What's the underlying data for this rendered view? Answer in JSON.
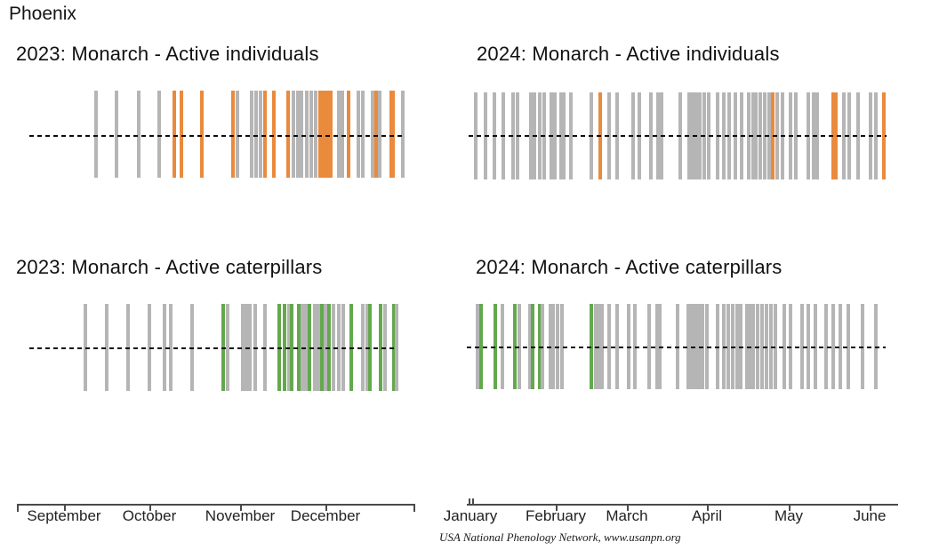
{
  "heading": "Phoenix",
  "attribution": "USA National Phenology Network, www.usanpn.org",
  "chart_data": {
    "type": "bar",
    "title": "Phoenix",
    "legend_colors": {
      "g": "#b5b5b5",
      "o": "#ea8a3c",
      "n": "#64a84e"
    },
    "x_axes": [
      {
        "id": "fall",
        "labels": [
          "September",
          "October",
          "November",
          "December"
        ]
      },
      {
        "id": "spring",
        "labels": [
          "January",
          "February",
          "March",
          "April",
          "May",
          "June"
        ]
      }
    ],
    "panels": [
      {
        "title": "2023: Monarch - Active individuals",
        "axis": "fall",
        "highlight": "orange",
        "bars": [
          [
            17.3,
            "g"
          ],
          [
            22.7,
            "g"
          ],
          [
            28.7,
            "g"
          ],
          [
            34.1,
            "g"
          ],
          [
            38.2,
            "o"
          ],
          [
            40.0,
            "o"
          ],
          [
            45.5,
            "o"
          ],
          [
            53.8,
            "o"
          ],
          [
            55.0,
            "g"
          ],
          [
            58.8,
            "g"
          ],
          [
            60.0,
            "g"
          ],
          [
            61.1,
            "g"
          ],
          [
            62.3,
            "o"
          ],
          [
            64.7,
            "o"
          ],
          [
            68.5,
            "o"
          ],
          [
            69.9,
            "g"
          ],
          [
            71.1,
            "g"
          ],
          [
            72.0,
            "g"
          ],
          [
            73.5,
            "g"
          ],
          [
            74.6,
            "g"
          ],
          [
            75.8,
            "g"
          ],
          [
            77.0,
            "o",
            4
          ],
          [
            82.0,
            "g"
          ],
          [
            82.9,
            "g"
          ],
          [
            84.6,
            "o"
          ],
          [
            87.2,
            "g"
          ],
          [
            88.4,
            "g"
          ],
          [
            91.0,
            "g"
          ],
          [
            91.9,
            "o"
          ],
          [
            92.9,
            "g"
          ],
          [
            96.0,
            "o",
            1.5
          ],
          [
            99.0,
            "g"
          ]
        ]
      },
      {
        "title": "2024: Monarch - Active individuals",
        "axis": "spring",
        "highlight": "orange",
        "bars": [
          [
            1.3,
            "g"
          ],
          [
            3.6,
            "g"
          ],
          [
            5.7,
            "g"
          ],
          [
            7.9,
            "g"
          ],
          [
            10.2,
            "g"
          ],
          [
            11.3,
            "g"
          ],
          [
            14.5,
            "g"
          ],
          [
            15.3,
            "g"
          ],
          [
            16.6,
            "g"
          ],
          [
            17.7,
            "g"
          ],
          [
            19.4,
            "g"
          ],
          [
            20.2,
            "g"
          ],
          [
            21.7,
            "g"
          ],
          [
            22.3,
            "g"
          ],
          [
            24.0,
            "g"
          ],
          [
            28.9,
            "g"
          ],
          [
            31.1,
            "o"
          ],
          [
            33.2,
            "g"
          ],
          [
            35.1,
            "g"
          ],
          [
            38.9,
            "g"
          ],
          [
            40.4,
            "g"
          ],
          [
            43.2,
            "g"
          ],
          [
            44.9,
            "g"
          ],
          [
            45.7,
            "g"
          ],
          [
            50.2,
            "g"
          ],
          [
            52.3,
            "g"
          ],
          [
            53.2,
            "g"
          ],
          [
            54.0,
            "g"
          ],
          [
            54.9,
            "g"
          ],
          [
            56.0,
            "g"
          ],
          [
            57.0,
            "g"
          ],
          [
            59.1,
            "g"
          ],
          [
            60.6,
            "g"
          ],
          [
            61.9,
            "g"
          ],
          [
            63.4,
            "g"
          ],
          [
            64.9,
            "g"
          ],
          [
            66.6,
            "g"
          ],
          [
            67.7,
            "g"
          ],
          [
            68.3,
            "g"
          ],
          [
            69.4,
            "g"
          ],
          [
            70.4,
            "g"
          ],
          [
            71.5,
            "g"
          ],
          [
            72.3,
            "o"
          ],
          [
            73.4,
            "g"
          ],
          [
            74.7,
            "g"
          ],
          [
            76.6,
            "g"
          ],
          [
            77.9,
            "g"
          ],
          [
            80.9,
            "g"
          ],
          [
            82.1,
            "g"
          ],
          [
            83.0,
            "g"
          ],
          [
            86.8,
            "o",
            1.8
          ],
          [
            89.4,
            "g"
          ],
          [
            90.6,
            "g"
          ],
          [
            92.8,
            "g"
          ],
          [
            95.7,
            "g"
          ],
          [
            97.0,
            "g"
          ],
          [
            98.9,
            "o"
          ]
        ]
      },
      {
        "title": "2023: Monarch - Active caterpillars",
        "axis": "fall",
        "highlight": "green",
        "bars": [
          [
            14.8,
            "g"
          ],
          [
            20.6,
            "g"
          ],
          [
            26.5,
            "g"
          ],
          [
            32.3,
            "g"
          ],
          [
            36.2,
            "g"
          ],
          [
            38.1,
            "g"
          ],
          [
            43.7,
            "g"
          ],
          [
            52.4,
            "n"
          ],
          [
            53.4,
            "g"
          ],
          [
            57.5,
            "g"
          ],
          [
            58.5,
            "g"
          ],
          [
            59.5,
            "g"
          ],
          [
            60.9,
            "g"
          ],
          [
            63.6,
            "g"
          ],
          [
            67.5,
            "n"
          ],
          [
            68.9,
            "n"
          ],
          [
            70.1,
            "g"
          ],
          [
            70.9,
            "n"
          ],
          [
            72.8,
            "n"
          ],
          [
            73.8,
            "g"
          ],
          [
            74.8,
            "g"
          ],
          [
            75.7,
            "n"
          ],
          [
            77.2,
            "g"
          ],
          [
            78.2,
            "g"
          ],
          [
            79.1,
            "n"
          ],
          [
            80.1,
            "g"
          ],
          [
            81.1,
            "n"
          ],
          [
            82.3,
            "g"
          ],
          [
            83.7,
            "g"
          ],
          [
            85.0,
            "g"
          ],
          [
            87.1,
            "n"
          ],
          [
            90.3,
            "g"
          ],
          [
            91.5,
            "g"
          ],
          [
            92.2,
            "n"
          ],
          [
            95.1,
            "n"
          ],
          [
            96.4,
            "g"
          ],
          [
            98.8,
            "n"
          ],
          [
            99.6,
            "g"
          ]
        ]
      },
      {
        "title": "2024: Monarch - Active caterpillars",
        "axis": "spring",
        "highlight": "green",
        "bars": [
          [
            2.1,
            "g"
          ],
          [
            3.0,
            "n"
          ],
          [
            6.4,
            "n"
          ],
          [
            8.1,
            "g"
          ],
          [
            11.0,
            "n"
          ],
          [
            12.1,
            "g"
          ],
          [
            14.6,
            "g"
          ],
          [
            15.3,
            "n"
          ],
          [
            17.0,
            "n"
          ],
          [
            17.6,
            "g"
          ],
          [
            19.5,
            "g"
          ],
          [
            20.2,
            "g"
          ],
          [
            21.2,
            "g"
          ],
          [
            22.3,
            "g"
          ],
          [
            29.3,
            "n"
          ],
          [
            30.4,
            "g"
          ],
          [
            31.2,
            "g"
          ],
          [
            31.8,
            "g"
          ],
          [
            33.5,
            "g"
          ],
          [
            35.5,
            "g"
          ],
          [
            38.2,
            "g"
          ],
          [
            39.7,
            "g"
          ],
          [
            43.1,
            "g"
          ],
          [
            45.0,
            "g"
          ],
          [
            45.6,
            "g"
          ],
          [
            49.9,
            "g"
          ],
          [
            52.4,
            "g"
          ],
          [
            53.3,
            "g"
          ],
          [
            54.1,
            "g"
          ],
          [
            55.0,
            "g"
          ],
          [
            55.8,
            "g"
          ],
          [
            56.9,
            "g"
          ],
          [
            59.4,
            "g"
          ],
          [
            60.9,
            "g"
          ],
          [
            62.0,
            "g"
          ],
          [
            63.1,
            "g"
          ],
          [
            64.1,
            "g"
          ],
          [
            65.0,
            "g"
          ],
          [
            66.5,
            "g"
          ],
          [
            67.3,
            "g"
          ],
          [
            67.9,
            "g"
          ],
          [
            69.0,
            "g"
          ],
          [
            70.1,
            "g"
          ],
          [
            71.1,
            "g"
          ],
          [
            72.2,
            "g"
          ],
          [
            73.2,
            "g"
          ],
          [
            75.4,
            "g"
          ],
          [
            76.9,
            "g"
          ],
          [
            79.6,
            "g"
          ],
          [
            81.1,
            "g"
          ],
          [
            82.8,
            "g"
          ],
          [
            85.4,
            "g"
          ],
          [
            87.0,
            "g"
          ],
          [
            88.7,
            "g"
          ],
          [
            90.7,
            "g"
          ],
          [
            94.1,
            "g"
          ],
          [
            97.2,
            "g"
          ]
        ]
      }
    ]
  }
}
